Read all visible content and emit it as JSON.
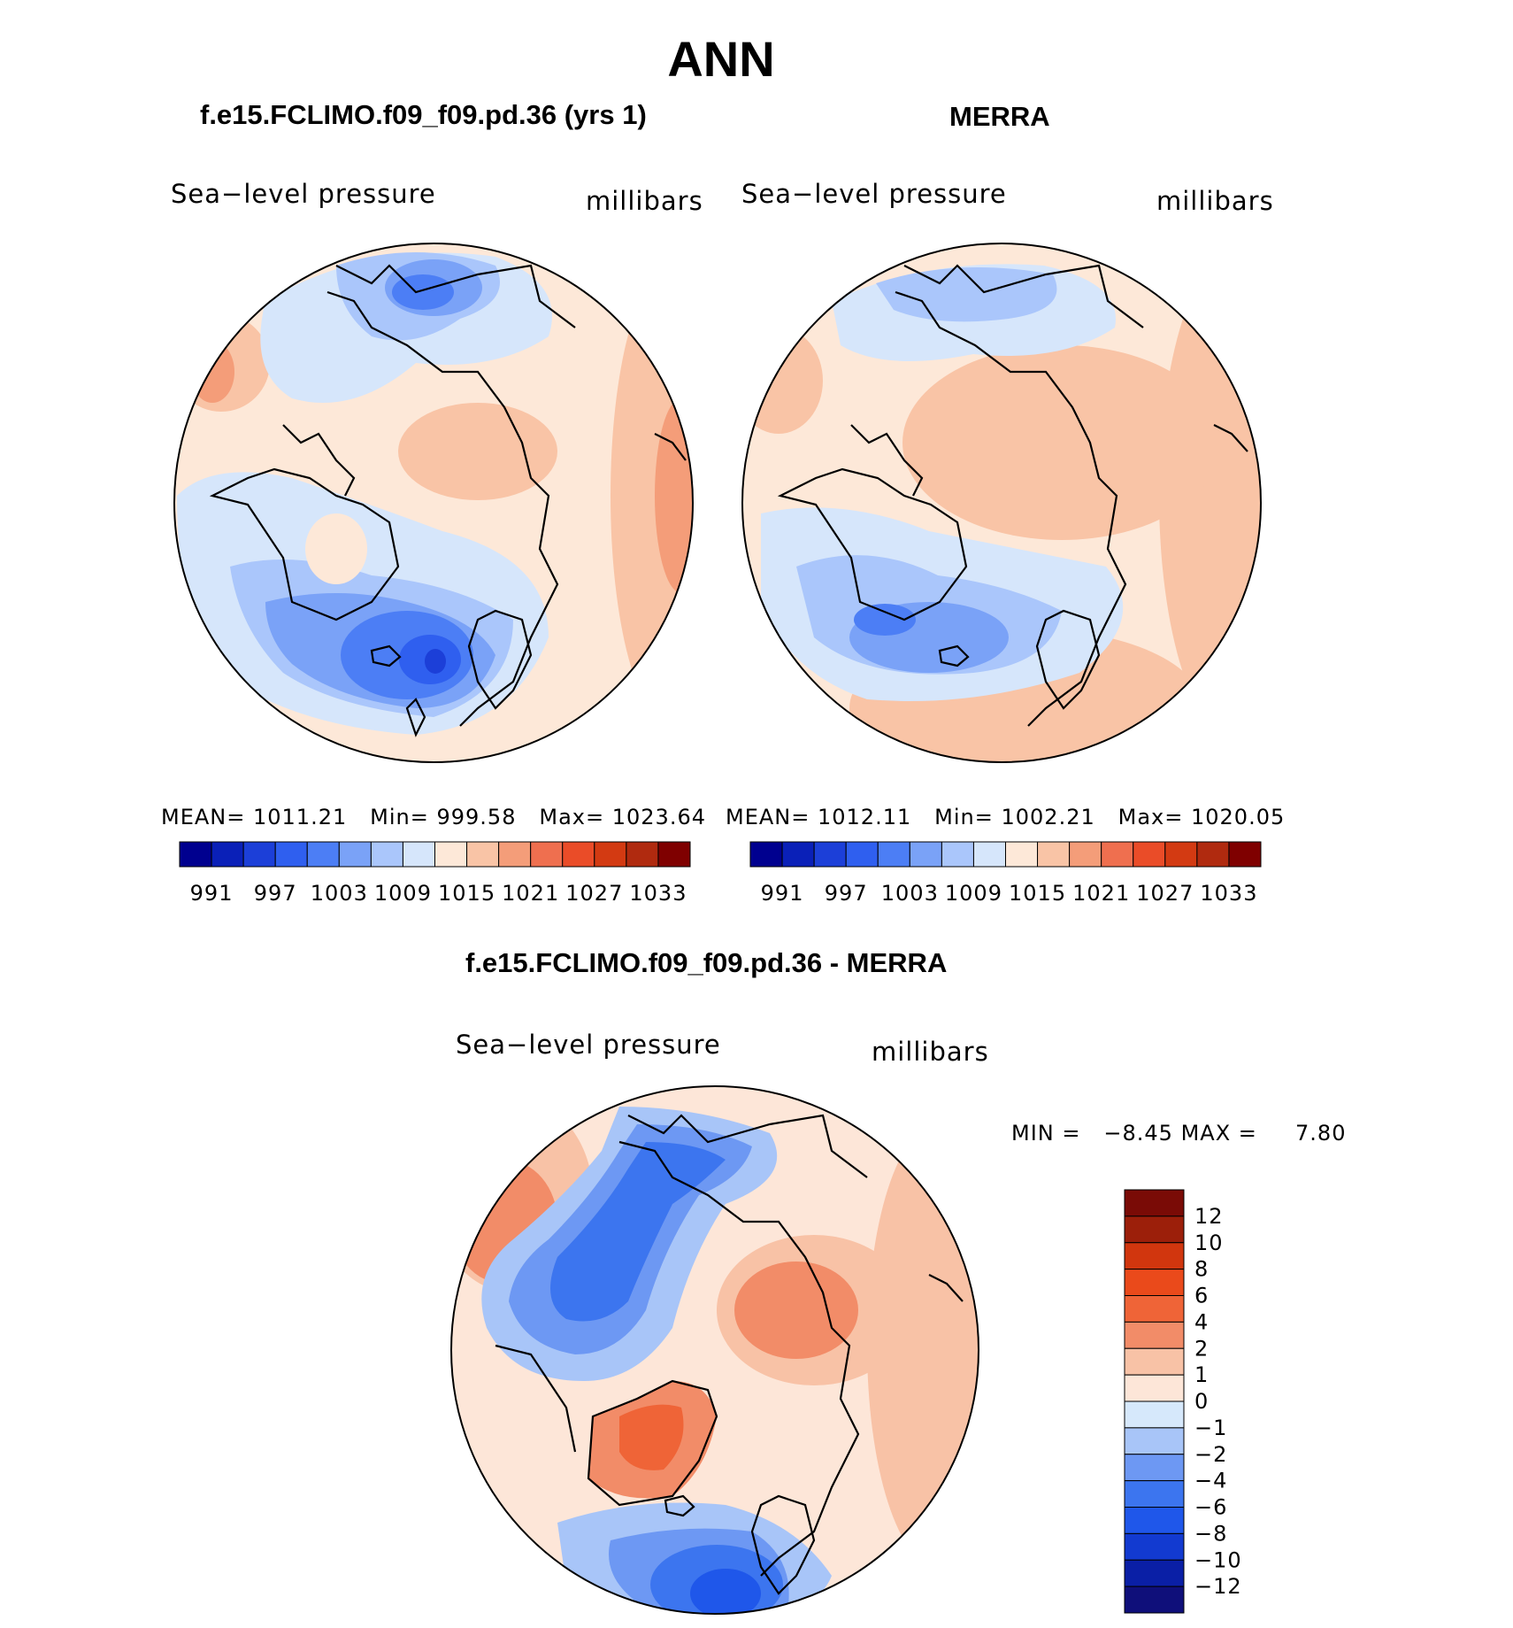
{
  "figure": {
    "title": "ANN",
    "colors": {
      "abs_scale": [
        "#00008f",
        "#0a20b8",
        "#1c3fd8",
        "#2f5fef",
        "#4c7ef5",
        "#7aa2f7",
        "#aac6fb",
        "#d6e6fb",
        "#fde8d8",
        "#f9c4a6",
        "#f49d79",
        "#ef6f4f",
        "#ea4c28",
        "#d33a12",
        "#b02a0f",
        "#7f0000"
      ],
      "diff_scale": [
        "#0f0f7a",
        "#0a1fa6",
        "#123ad0",
        "#1f57ea",
        "#3c75ef",
        "#6d98f3",
        "#a8c5f8",
        "#d6e8fb",
        "#fde6d8",
        "#f8c2a6",
        "#f28c68",
        "#ef6437",
        "#ea4a1b",
        "#d1360e",
        "#9c1f0a",
        "#7a0b06"
      ],
      "ocean_neutral": "#fde6d8",
      "coast": "#000000"
    }
  },
  "chart_data": [
    {
      "type": "contour-map",
      "panel": "model",
      "title": "f.e15.FCLIMO.f09_f09.pd.36 (yrs 1)",
      "variable": "Sea−level pressure",
      "units": "millibars",
      "stats": {
        "mean_label": "MEAN=",
        "mean": "1011.21",
        "min_label": "Min=",
        "min": "999.58",
        "max_label": "Max=",
        "max": "1023.64"
      },
      "colorbar_ticks": [
        "991",
        "997",
        "1003",
        "1009",
        "1015",
        "1021",
        "1027",
        "1033"
      ],
      "projection": "north-polar-stereographic"
    },
    {
      "type": "contour-map",
      "panel": "observation",
      "title": "MERRA",
      "variable": "Sea−level pressure",
      "units": "millibars",
      "stats": {
        "mean_label": "MEAN=",
        "mean": "1012.11",
        "min_label": "Min=",
        "min": "1002.21",
        "max_label": "Max=",
        "max": "1020.05"
      },
      "colorbar_ticks": [
        "991",
        "997",
        "1003",
        "1009",
        "1015",
        "1021",
        "1027",
        "1033"
      ],
      "projection": "north-polar-stereographic"
    },
    {
      "type": "contour-map",
      "panel": "difference",
      "title": "f.e15.FCLIMO.f09_f09.pd.36 - MERRA",
      "variable": "Sea−level pressure",
      "units": "millibars",
      "stats": {
        "min_label": "MIN =",
        "min": "−8.45",
        "max_label": "MAX =",
        "max": "7.80"
      },
      "colorbar_ticks": [
        "12",
        "10",
        "8",
        "6",
        "4",
        "2",
        "1",
        "0",
        "−1",
        "−2",
        "−4",
        "−6",
        "−8",
        "−10",
        "−12"
      ],
      "projection": "north-polar-stereographic"
    }
  ]
}
